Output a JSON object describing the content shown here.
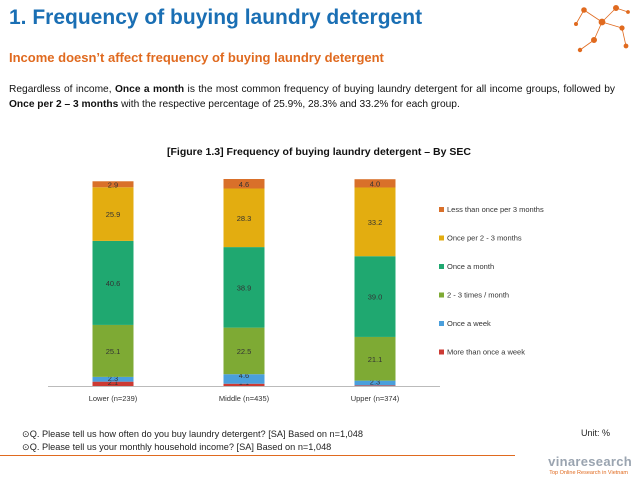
{
  "page": {
    "title": "1. Frequency of buying laundry detergent",
    "subtitle": "Income doesn’t affect frequency of buying laundry detergent",
    "body_parts": [
      {
        "t": "Regardless of income, ",
        "b": false
      },
      {
        "t": "Once a month",
        "b": true
      },
      {
        "t": " is the most common frequency of buying laundry detergent for all income groups, followed by ",
        "b": false
      },
      {
        "t": "Once per 2 – 3 months",
        "b": true
      },
      {
        "t": " with the respective percentage of 25.9%, 28.3% and 33.2% for each group.",
        "b": false
      }
    ],
    "footnote_1": "Q. Please tell us how often do you buy laundry detergent? [SA] Based on n=1,048",
    "footnote_2": "Q. Please tell us your monthly household income? [SA] Based on n=1,048",
    "unit": "Unit: %",
    "brand": "vinaresearch",
    "brand_tagline": "Top Online Research in Vietnam"
  },
  "colors": {
    "title": "#1a6fb4",
    "subtitle": "#e06a1f",
    "deco": "#e06a1f"
  },
  "chart_data": {
    "type": "bar",
    "stacked": true,
    "title": "[Figure 1.3] Frequency of buying laundry detergent – By SEC",
    "categories": [
      "Lower (n=239)",
      "Middle (n=435)",
      "Upper (n=374)"
    ],
    "series": [
      {
        "name": "More than once a week",
        "color": "#cc3a33",
        "values": [
          2.1,
          1.1,
          0.3
        ]
      },
      {
        "name": "Once a week",
        "color": "#4a9fdc",
        "values": [
          2.3,
          4.6,
          2.3
        ]
      },
      {
        "name": "2 - 3 times / month",
        "color": "#7eaa34",
        "values": [
          25.1,
          22.5,
          21.1
        ]
      },
      {
        "name": "Once a month",
        "color": "#1fa870",
        "values": [
          40.6,
          38.9,
          39.0
        ]
      },
      {
        "name": "Once per 2 - 3 months",
        "color": "#e3ad10",
        "values": [
          25.9,
          28.3,
          33.2
        ]
      },
      {
        "name": "Less than once per 3 months",
        "color": "#d9702a",
        "values": [
          2.9,
          4.6,
          4.0
        ]
      }
    ],
    "ylim": [
      0,
      100
    ],
    "legend": "right",
    "grid": false
  }
}
